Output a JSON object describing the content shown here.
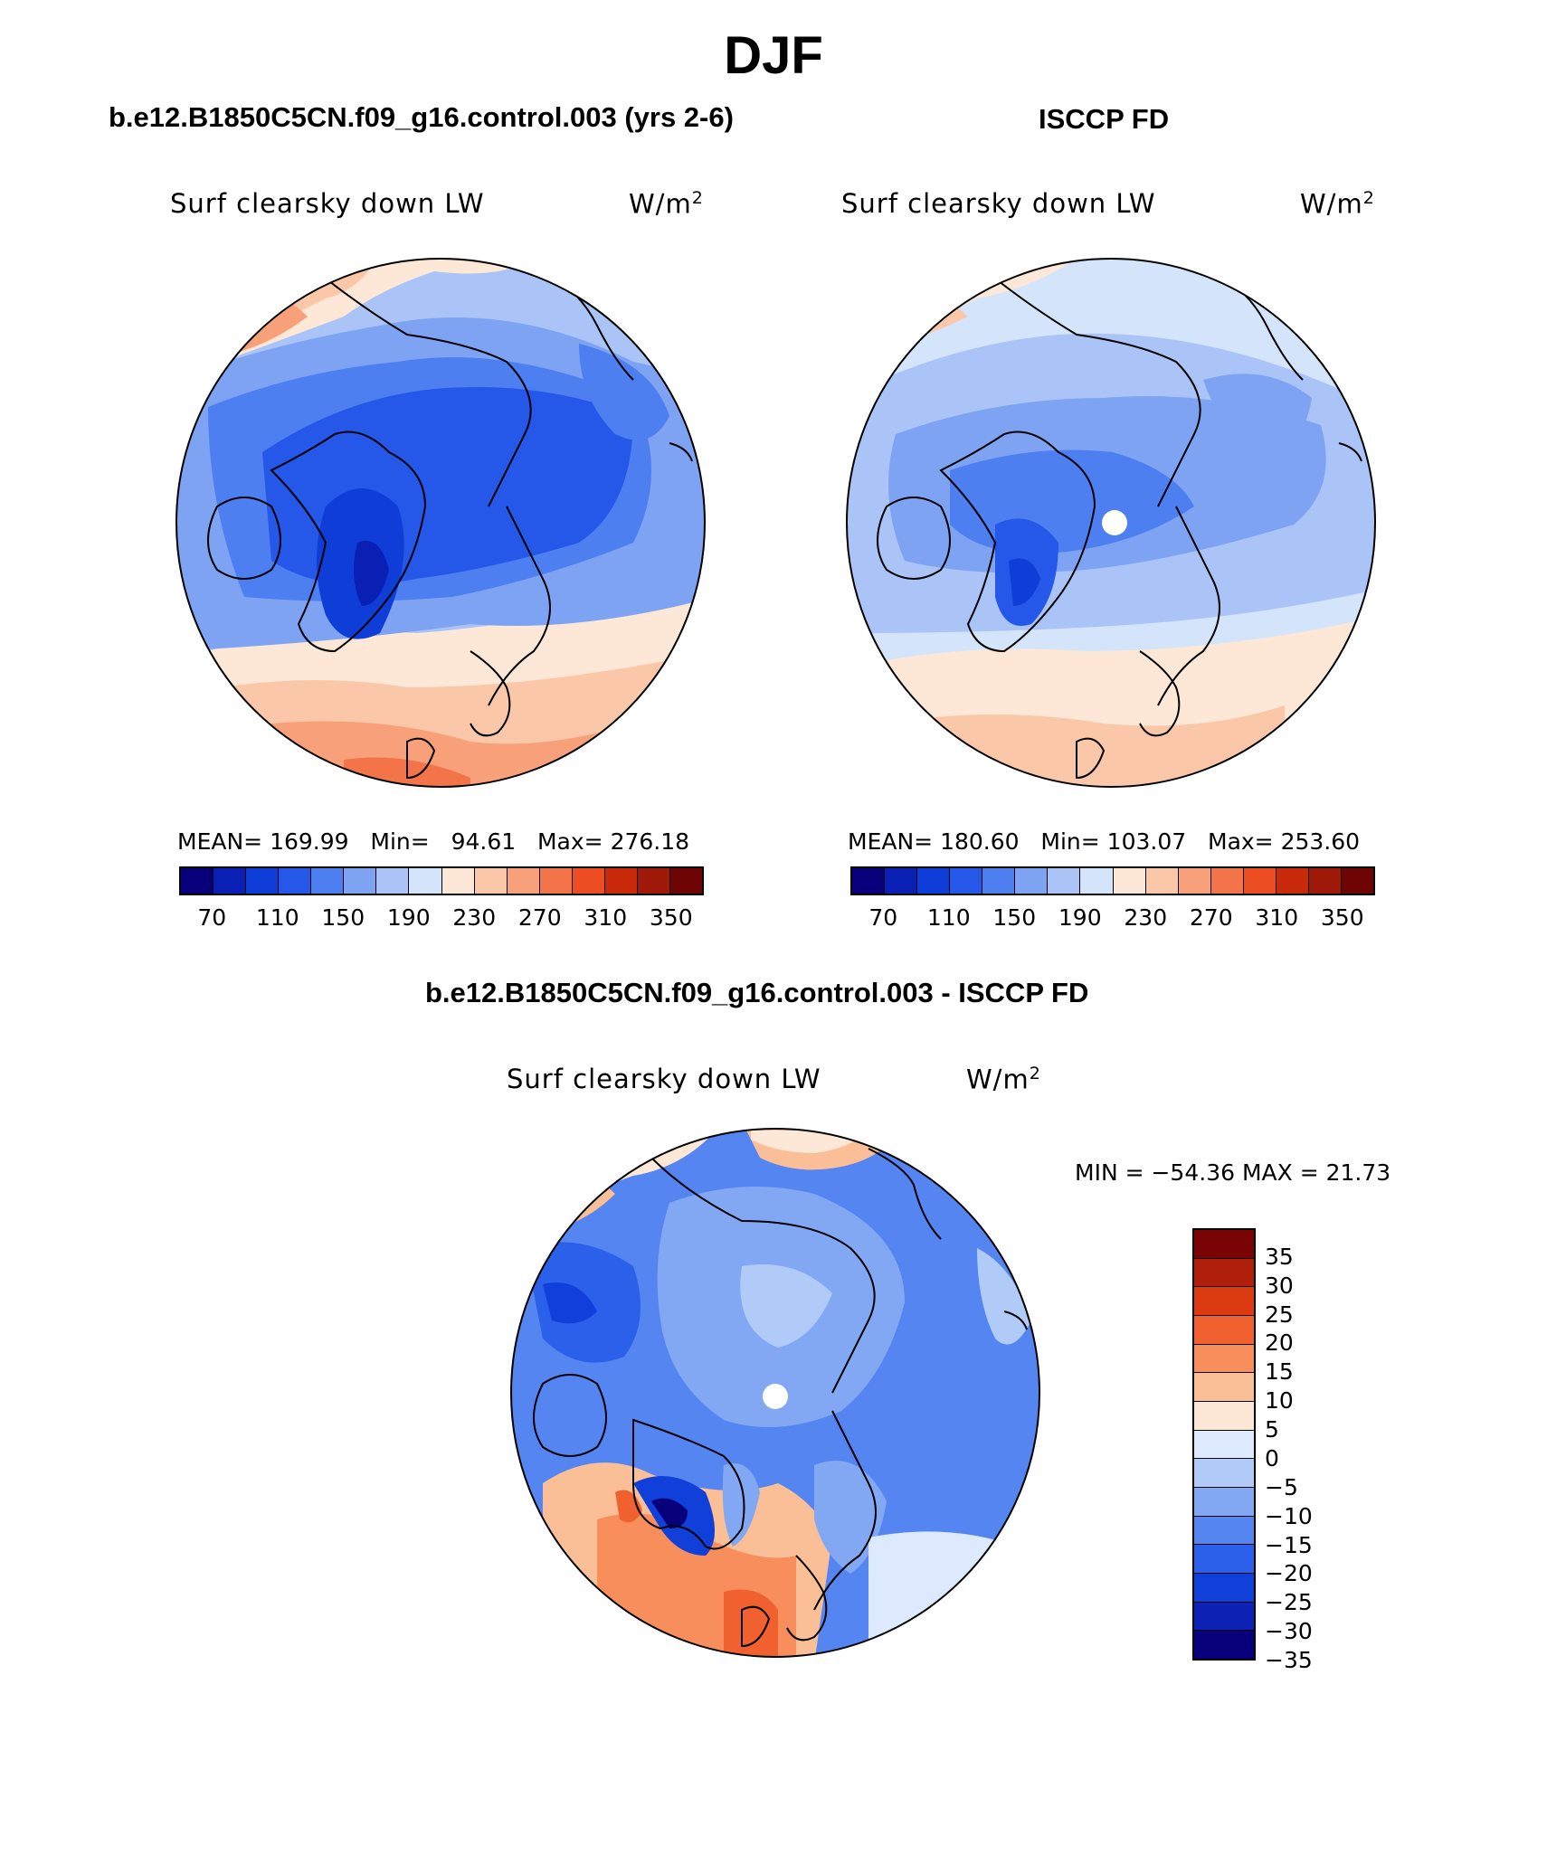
{
  "page_title": "DJF",
  "colors": {
    "seq_palette": [
      "#08007a",
      "#0a1fb4",
      "#0f3dd8",
      "#2557e8",
      "#4d7ff0",
      "#7fa3f3",
      "#aac4f7",
      "#d4e5fb",
      "#fde7d6",
      "#fbc7a9",
      "#f8a07a",
      "#f47449",
      "#ec4d22",
      "#c92a0a",
      "#a01a0a",
      "#6e0504"
    ],
    "diff_palette": [
      "#08007a",
      "#0b22b5",
      "#1040d9",
      "#2a60ea",
      "#5485f0",
      "#82a8f4",
      "#b0cbf8",
      "#dde9fc",
      "#fde7d6",
      "#fbbf98",
      "#f78e5c",
      "#f0612f",
      "#dc3a10",
      "#b01f0a",
      "#7a0404"
    ]
  },
  "panels": [
    {
      "title": "b.e12.B1850C5CN.f09_g16.control.003 (yrs 2-6)",
      "label": "Surf clearsky down LW",
      "units_base": "W/m",
      "units_sup": "2",
      "stats": {
        "mean_label": "MEAN=",
        "mean": "169.99",
        "min_label": "Min=",
        "min": "94.61",
        "max_label": "Max=",
        "max": "276.18"
      }
    },
    {
      "title": "ISCCP FD",
      "label": "Surf clearsky down LW",
      "units_base": "W/m",
      "units_sup": "2",
      "stats": {
        "mean_label": "MEAN=",
        "mean": "180.60",
        "min_label": "Min=",
        "min": "103.07",
        "max_label": "Max=",
        "max": "253.60"
      }
    }
  ],
  "seq_colorbar_labels": [
    "70",
    "110",
    "150",
    "190",
    "230",
    "270",
    "310",
    "350"
  ],
  "diff_panel": {
    "title": "b.e12.B1850C5CN.f09_g16.control.003 - ISCCP FD",
    "label": "Surf clearsky down LW",
    "units_base": "W/m",
    "units_sup": "2",
    "minmax": "MIN = −54.36 MAX =  21.73",
    "colorbar_labels": [
      "35",
      "30",
      "25",
      "20",
      "15",
      "10",
      "5",
      "0",
      "−5",
      "−10",
      "−15",
      "−20",
      "−25",
      "−30",
      "−35"
    ]
  }
}
